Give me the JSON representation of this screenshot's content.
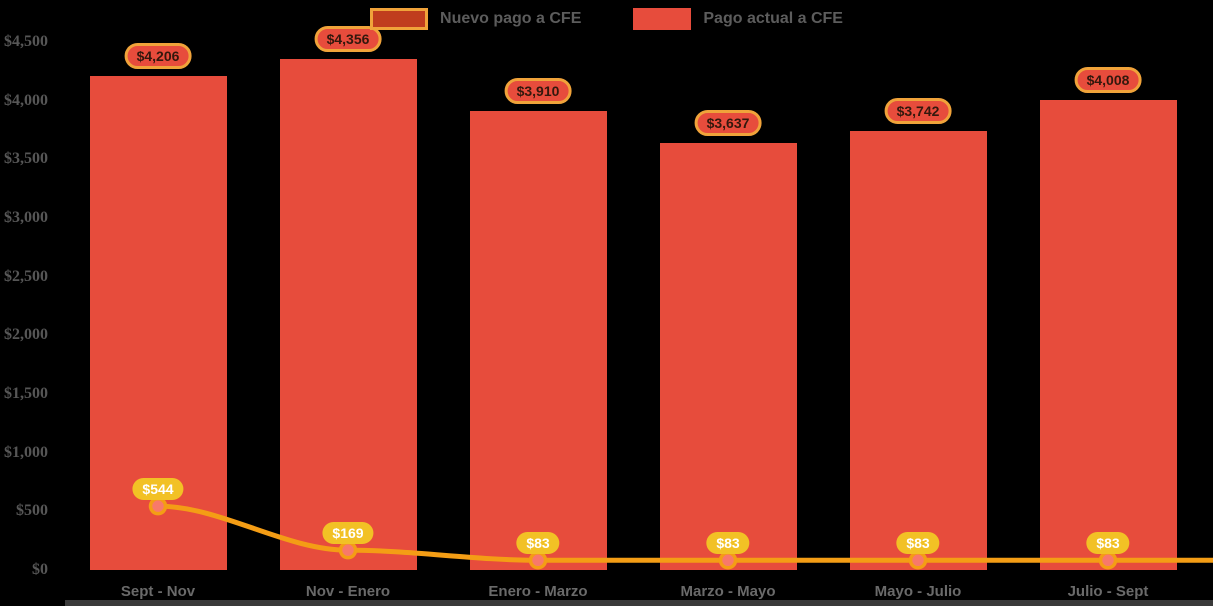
{
  "chart_data": {
    "type": "bar+line",
    "title": "",
    "categories": [
      "Sept - Nov",
      "Nov - Enero",
      "Enero - Marzo",
      "Marzo - Mayo",
      "Mayo - Julio",
      "Julio - Sept"
    ],
    "series": [
      {
        "name": "Nuevo pago a CFE",
        "type": "line",
        "values": [
          544,
          169,
          83,
          83,
          83,
          83
        ],
        "labels": [
          "$544",
          "$169",
          "$83",
          "$83",
          "$83",
          "$83"
        ],
        "color": "#f49d15"
      },
      {
        "name": "Pago actual a CFE",
        "type": "bar",
        "values": [
          4206,
          4356,
          3910,
          3637,
          3742,
          4008
        ],
        "labels": [
          "$4,206",
          "$4,356",
          "$3,910",
          "$3,637",
          "$3,742",
          "$4,008"
        ],
        "color": "#e74c3c"
      }
    ],
    "y_axis": {
      "ticks": [
        "$0",
        "$500",
        "$1,000",
        "$1,500",
        "$2,000",
        "$2,500",
        "$3,000",
        "$3,500",
        "$4,000",
        "$4,500"
      ],
      "tick_values": [
        0,
        500,
        1000,
        1500,
        2000,
        2500,
        3000,
        3500,
        4000,
        4500
      ],
      "min": 0,
      "max": 4500
    },
    "legend_position": "top",
    "grid": false
  },
  "colors": {
    "background": "#000000",
    "bar_fill": "#e74c3c",
    "line_stroke": "#f49d15",
    "marker_fill": "#f8796a",
    "marker_stroke": "#f49d15",
    "bar_badge_fill": "#e74c3c",
    "bar_badge_border": "#f0a33a",
    "bar_badge_text": "#33180d",
    "line_badge_fill": "#f2c125",
    "line_badge_text": "#ffffff",
    "legend_line_swatch_fill": "#c03d1e",
    "legend_line_swatch_border": "#f0a33a",
    "axis_text": "#565656",
    "category_text": "#6a6a6a"
  }
}
